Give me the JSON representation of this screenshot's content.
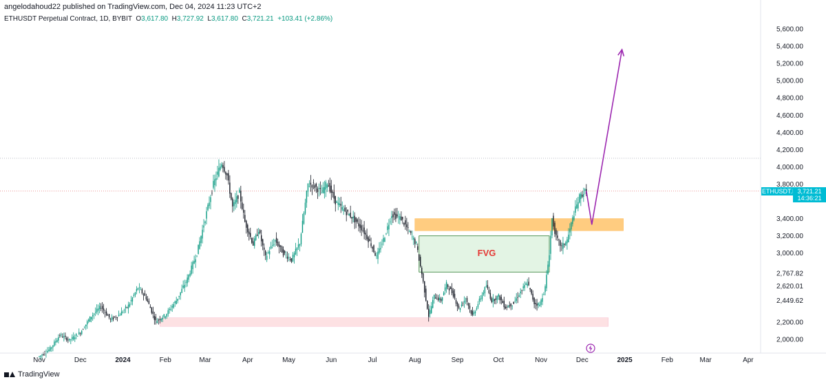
{
  "header": {
    "published_by": "angelodahoud22 published on TradingView.com, Dec 04, 2024 11:23 UTC+2"
  },
  "symbol_line": {
    "instrument": "ETHUSDT Perpetual Contract, 1D, BYBIT",
    "o_label": "O",
    "o_value": "3,617.80",
    "h_label": "H",
    "h_value": "3,727.92",
    "l_label": "L",
    "l_value": "3,617.80",
    "c_label": "C",
    "c_value": "3,721.21",
    "change": "+103.41 (+2.86%)"
  },
  "price_badge": {
    "symbol": "ETHUSDT.P",
    "price": "3,721.21",
    "countdown": "14:36:21"
  },
  "annotations": {
    "fvg_label": "FVG"
  },
  "footer": {
    "brand": "TradingView"
  },
  "colors": {
    "up": "#089981",
    "down": "#131722",
    "fvg_fill": "#e3f4e4",
    "fvg_border": "#2e7d32",
    "orange_zone": "#ffcc80",
    "pink_zone": "#fde1e3",
    "arrow": "#9c27b0",
    "badge": "#00bcd4",
    "fvg_text": "#e53935"
  },
  "chart_data": {
    "type": "candlestick",
    "ylim": [
      1900,
      5700
    ],
    "y_ticks": [
      "5,600.00",
      "5,400.00",
      "5,200.00",
      "5,000.00",
      "4,800.00",
      "4,600.00",
      "4,400.00",
      "4,200.00",
      "4,000.00",
      "3,800.00",
      "3,400.00",
      "3,200.00",
      "3,000.00",
      "2,767.82",
      "2,620.01",
      "2,449.62",
      "2,200.00",
      "2,000.00"
    ],
    "y_tick_values": [
      5600,
      5400,
      5200,
      5000,
      4800,
      4600,
      4400,
      4200,
      4000,
      3800,
      3400,
      3200,
      3000,
      2767.82,
      2620.01,
      2449.62,
      2200,
      2000
    ],
    "x_ticks": [
      "Nov",
      "Dec",
      "2024",
      "Feb",
      "Mar",
      "Apr",
      "May",
      "Jun",
      "Jul",
      "Aug",
      "Sep",
      "Oct",
      "Nov",
      "Dec",
      "2025",
      "Feb",
      "Mar",
      "Apr"
    ],
    "x_tick_days": [
      0,
      30,
      61,
      92,
      121,
      152,
      182,
      213,
      243,
      274,
      305,
      335,
      366,
      396,
      427,
      458,
      486,
      517
    ],
    "price_path": [
      [
        0,
        1800
      ],
      [
        8,
        1890
      ],
      [
        15,
        2050
      ],
      [
        22,
        1990
      ],
      [
        30,
        2080
      ],
      [
        38,
        2270
      ],
      [
        45,
        2380
      ],
      [
        52,
        2230
      ],
      [
        58,
        2280
      ],
      [
        65,
        2390
      ],
      [
        72,
        2600
      ],
      [
        78,
        2480
      ],
      [
        85,
        2210
      ],
      [
        92,
        2280
      ],
      [
        100,
        2450
      ],
      [
        108,
        2700
      ],
      [
        115,
        3000
      ],
      [
        121,
        3400
      ],
      [
        127,
        3800
      ],
      [
        133,
        4050
      ],
      [
        137,
        3900
      ],
      [
        141,
        3530
      ],
      [
        146,
        3700
      ],
      [
        150,
        3360
      ],
      [
        156,
        3100
      ],
      [
        160,
        3270
      ],
      [
        165,
        2950
      ],
      [
        172,
        3150
      ],
      [
        178,
        3000
      ],
      [
        184,
        2920
      ],
      [
        190,
        3120
      ],
      [
        196,
        3800
      ],
      [
        200,
        3790
      ],
      [
        206,
        3700
      ],
      [
        210,
        3820
      ],
      [
        216,
        3600
      ],
      [
        222,
        3500
      ],
      [
        228,
        3420
      ],
      [
        236,
        3270
      ],
      [
        242,
        3100
      ],
      [
        246,
        2950
      ],
      [
        252,
        3200
      ],
      [
        257,
        3450
      ],
      [
        264,
        3400
      ],
      [
        269,
        3270
      ],
      [
        275,
        3100
      ],
      [
        279,
        2760
      ],
      [
        284,
        2270
      ],
      [
        288,
        2500
      ],
      [
        293,
        2450
      ],
      [
        297,
        2640
      ],
      [
        302,
        2520
      ],
      [
        306,
        2350
      ],
      [
        311,
        2480
      ],
      [
        316,
        2270
      ],
      [
        321,
        2450
      ],
      [
        326,
        2620
      ],
      [
        330,
        2450
      ],
      [
        335,
        2500
      ],
      [
        340,
        2370
      ],
      [
        346,
        2420
      ],
      [
        351,
        2550
      ],
      [
        356,
        2660
      ],
      [
        361,
        2420
      ],
      [
        365,
        2400
      ],
      [
        369,
        2600
      ],
      [
        372,
        3000
      ],
      [
        374,
        3400
      ],
      [
        377,
        3180
      ],
      [
        381,
        3070
      ],
      [
        385,
        3150
      ],
      [
        390,
        3460
      ],
      [
        394,
        3650
      ],
      [
        397,
        3700
      ],
      [
        399,
        3721
      ]
    ],
    "fvg_zone": {
      "day_start": 277,
      "day_end": 372,
      "y_low": 2780,
      "y_high": 3200
    },
    "orange_zone": {
      "day_start": 274,
      "day_end": 426,
      "y_low": 3260,
      "y_high": 3400
    },
    "pink_zone": {
      "day_start": 88,
      "day_end": 415,
      "y_low": 2150,
      "y_high": 2250
    },
    "horizontal_lines": [
      4100,
      3721
    ],
    "projection_arrow": [
      [
        399,
        3721
      ],
      [
        403,
        3330
      ],
      [
        425,
        5360
      ]
    ],
    "last_price": 3721.21
  }
}
